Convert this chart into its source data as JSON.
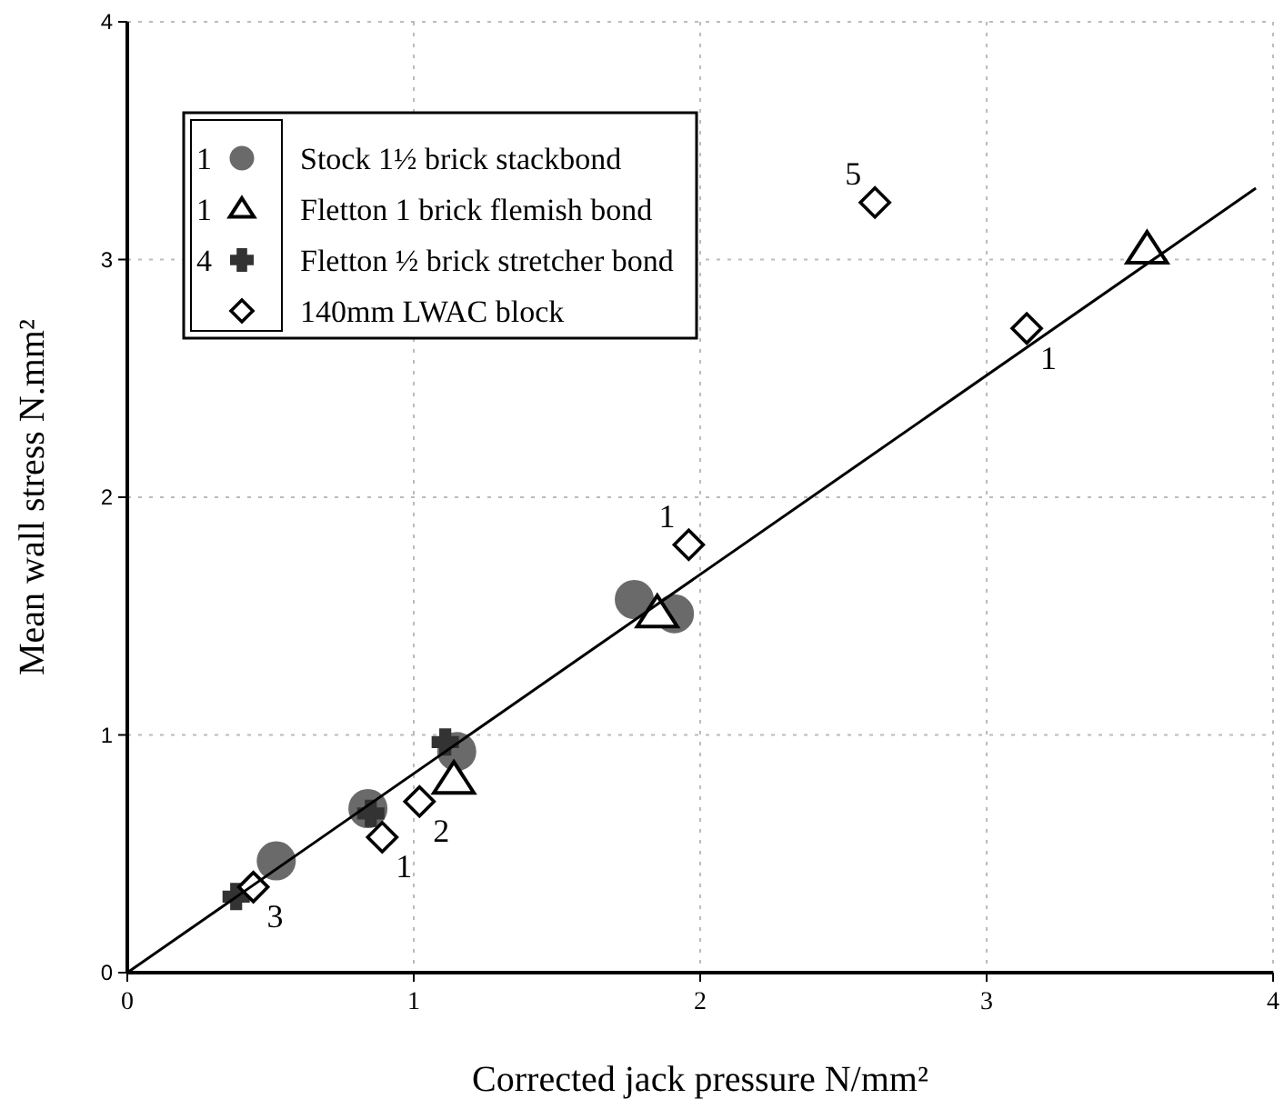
{
  "chart_data": {
    "type": "scatter",
    "xlabel": "Corrected jack pressure  N/mm²",
    "ylabel": "Mean wall stress  N.mm²",
    "xlim": [
      0,
      4
    ],
    "ylim": [
      0,
      4
    ],
    "xticks": [
      0,
      1,
      2,
      3,
      4
    ],
    "yticks": [
      0,
      1,
      2,
      3,
      4
    ],
    "grid": true,
    "legend": "top left",
    "series": [
      {
        "name": "Stock 1½ brick stackbond",
        "color": "#6a6a6a",
        "marker": "circle",
        "x": [
          0.52,
          0.84,
          1.15,
          1.77,
          1.91
        ],
        "values": [
          0.47,
          0.69,
          0.93,
          1.57,
          1.51
        ]
      },
      {
        "name": "Fletton 1 brick flemish bond",
        "color": "#000000",
        "marker": "triangle",
        "x": [
          1.14,
          1.85,
          3.56
        ],
        "values": [
          0.81,
          1.51,
          3.04
        ]
      },
      {
        "name": "Fletton ½ brick stretcher bond",
        "color": "#333333",
        "marker": "cross",
        "x": [
          0.38,
          0.85,
          1.11
        ],
        "values": [
          0.32,
          0.67,
          0.97
        ]
      },
      {
        "name": "140mm LWAC block",
        "color": "#000000",
        "marker": "diamond",
        "x": [
          0.44,
          0.89,
          1.02,
          1.96,
          3.14,
          2.61
        ],
        "values": [
          0.36,
          0.57,
          0.72,
          1.8,
          2.71,
          3.24
        ]
      },
      {
        "type": "line",
        "color": "#000000",
        "x": [
          0,
          3.94
        ],
        "values": [
          0,
          3.3
        ]
      }
    ],
    "annotations": [
      "1",
      "1",
      "4",
      {
        "text": "3",
        "x": 0.44,
        "y": 0.36
      },
      {
        "text": "1",
        "x": 0.89,
        "y": 0.57
      },
      {
        "text": "2",
        "x": 1.02,
        "y": 0.72
      },
      {
        "text": "1",
        "x": 1.96,
        "y": 1.8
      },
      {
        "text": "1",
        "x": 3.14,
        "y": 2.71
      },
      {
        "text": "5",
        "x": 2.61,
        "y": 3.24
      }
    ]
  }
}
